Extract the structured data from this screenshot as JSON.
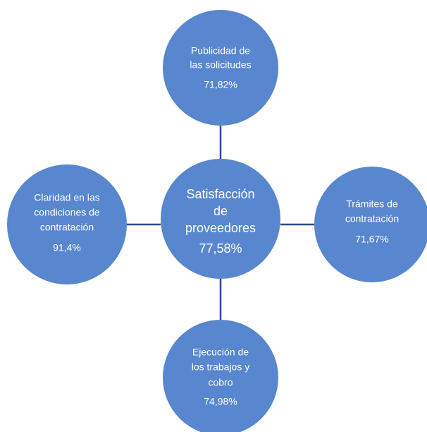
{
  "nodes": [
    {
      "label_lines": [
        "Satisfacción",
        "de",
        "proveedores"
      ],
      "value": "77,58%"
    },
    {
      "label_lines": [
        "Publicidad de",
        "las solicitudes"
      ],
      "value": "71,82%"
    },
    {
      "label_lines": [
        "Trámites de",
        "contratación"
      ],
      "value": "71,67%"
    },
    {
      "label_lines": [
        "Ejecución de",
        "los trabajos y",
        "cobro"
      ],
      "value": "74,98%"
    },
    {
      "label_lines": [
        "Claridad en las",
        "condiciones de",
        "contratación"
      ],
      "value": "91,4%"
    }
  ]
}
